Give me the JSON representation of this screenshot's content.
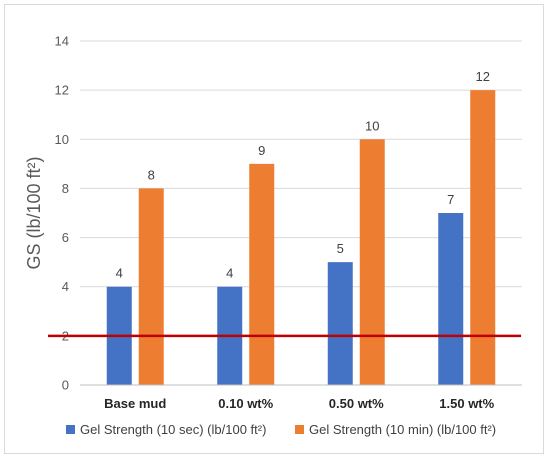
{
  "chart_data": {
    "type": "bar",
    "categories": [
      "Base mud",
      "0.10 wt%",
      "0.50 wt%",
      "1.50 wt%"
    ],
    "series": [
      {
        "name": "Gel Strength (10 sec) (lb/100 ft²)",
        "values": [
          4,
          4,
          5,
          7
        ],
        "color": "#4472C4"
      },
      {
        "name": "Gel Strength (10 min) (lb/100 ft²)",
        "values": [
          8,
          9,
          10,
          12
        ],
        "color": "#ED7D31"
      }
    ],
    "ylabel": "GS (lb/100 ft²)",
    "xlabel": "",
    "ylim": [
      0,
      14
    ],
    "yticks": [
      0,
      2,
      4,
      6,
      8,
      10,
      12,
      14
    ],
    "grid": true,
    "legend_position": "bottom",
    "reference_line": {
      "y": 2,
      "color": "#C00000"
    }
  }
}
